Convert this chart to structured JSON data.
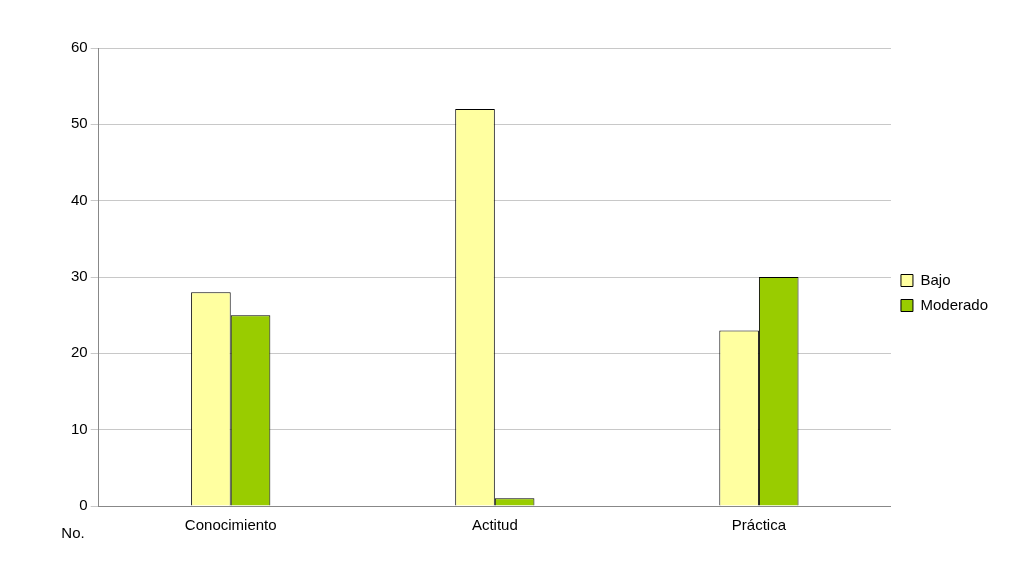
{
  "chart_data": {
    "type": "bar",
    "ylabel": "No.",
    "categories": [
      "Conocimiento",
      "Actitud",
      "Práctica"
    ],
    "series": [
      {
        "name": "Bajo",
        "color": "#ffffa0",
        "values": [
          28,
          52,
          23
        ]
      },
      {
        "name": "Moderado",
        "color": "#99cc00",
        "values": [
          25,
          1,
          30
        ]
      }
    ],
    "ylim": [
      0,
      60
    ],
    "yticks": [
      0,
      10,
      20,
      30,
      40,
      50,
      60
    ],
    "grid": "y",
    "legend": "right"
  }
}
